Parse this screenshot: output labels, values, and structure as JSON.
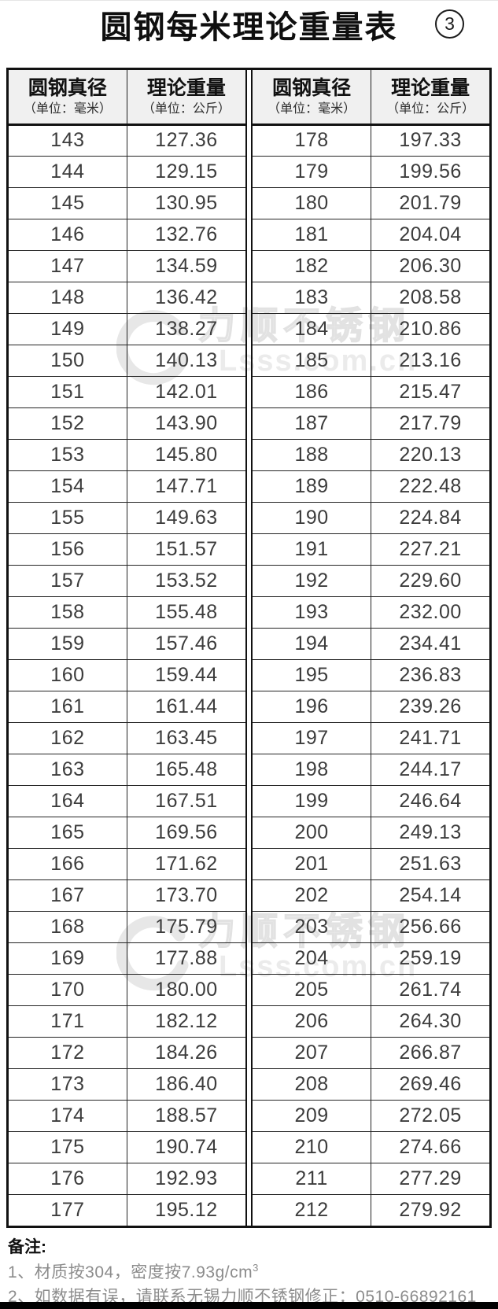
{
  "page": {
    "title": "圆钢每米理论重量表",
    "page_number": "3"
  },
  "watermark": {
    "brand": "力顺不锈钢",
    "url": "Lsss.com.cn"
  },
  "table": {
    "header": {
      "diameter_label": "圆钢真径",
      "diameter_unit": "（单位：毫米）",
      "weight_label": "理论重量",
      "weight_unit": "（单位：公斤）"
    },
    "left_rows": [
      [
        "143",
        "127.36"
      ],
      [
        "144",
        "129.15"
      ],
      [
        "145",
        "130.95"
      ],
      [
        "146",
        "132.76"
      ],
      [
        "147",
        "134.59"
      ],
      [
        "148",
        "136.42"
      ],
      [
        "149",
        "138.27"
      ],
      [
        "150",
        "140.13"
      ],
      [
        "151",
        "142.01"
      ],
      [
        "152",
        "143.90"
      ],
      [
        "153",
        "145.80"
      ],
      [
        "154",
        "147.71"
      ],
      [
        "155",
        "149.63"
      ],
      [
        "156",
        "151.57"
      ],
      [
        "157",
        "153.52"
      ],
      [
        "158",
        "155.48"
      ],
      [
        "159",
        "157.46"
      ],
      [
        "160",
        "159.44"
      ],
      [
        "161",
        "161.44"
      ],
      [
        "162",
        "163.45"
      ],
      [
        "163",
        "165.48"
      ],
      [
        "164",
        "167.51"
      ],
      [
        "165",
        "169.56"
      ],
      [
        "166",
        "171.62"
      ],
      [
        "167",
        "173.70"
      ],
      [
        "168",
        "175.79"
      ],
      [
        "169",
        "177.88"
      ],
      [
        "170",
        "180.00"
      ],
      [
        "171",
        "182.12"
      ],
      [
        "172",
        "184.26"
      ],
      [
        "173",
        "186.40"
      ],
      [
        "174",
        "188.57"
      ],
      [
        "175",
        "190.74"
      ],
      [
        "176",
        "192.93"
      ],
      [
        "177",
        "195.12"
      ]
    ],
    "right_rows": [
      [
        "178",
        "197.33"
      ],
      [
        "179",
        "199.56"
      ],
      [
        "180",
        "201.79"
      ],
      [
        "181",
        "204.04"
      ],
      [
        "182",
        "206.30"
      ],
      [
        "183",
        "208.58"
      ],
      [
        "184",
        "210.86"
      ],
      [
        "185",
        "213.16"
      ],
      [
        "186",
        "215.47"
      ],
      [
        "187",
        "217.79"
      ],
      [
        "188",
        "220.13"
      ],
      [
        "189",
        "222.48"
      ],
      [
        "190",
        "224.84"
      ],
      [
        "191",
        "227.21"
      ],
      [
        "192",
        "229.60"
      ],
      [
        "193",
        "232.00"
      ],
      [
        "194",
        "234.41"
      ],
      [
        "195",
        "236.83"
      ],
      [
        "196",
        "239.26"
      ],
      [
        "197",
        "241.71"
      ],
      [
        "198",
        "244.17"
      ],
      [
        "199",
        "246.64"
      ],
      [
        "200",
        "249.13"
      ],
      [
        "201",
        "251.63"
      ],
      [
        "202",
        "254.14"
      ],
      [
        "203",
        "256.66"
      ],
      [
        "204",
        "259.19"
      ],
      [
        "205",
        "261.74"
      ],
      [
        "206",
        "264.30"
      ],
      [
        "207",
        "266.87"
      ],
      [
        "208",
        "269.46"
      ],
      [
        "209",
        "272.05"
      ],
      [
        "210",
        "274.66"
      ],
      [
        "211",
        "277.29"
      ],
      [
        "212",
        "279.92"
      ]
    ]
  },
  "notes": {
    "title": "备注:",
    "line1_prefix": "1、材质按304，密度按7.93g/cm",
    "line1_sup": "3",
    "line2": "2、如数据有误，请联系无锡力顺不锈钢修正：0510-66892161"
  }
}
